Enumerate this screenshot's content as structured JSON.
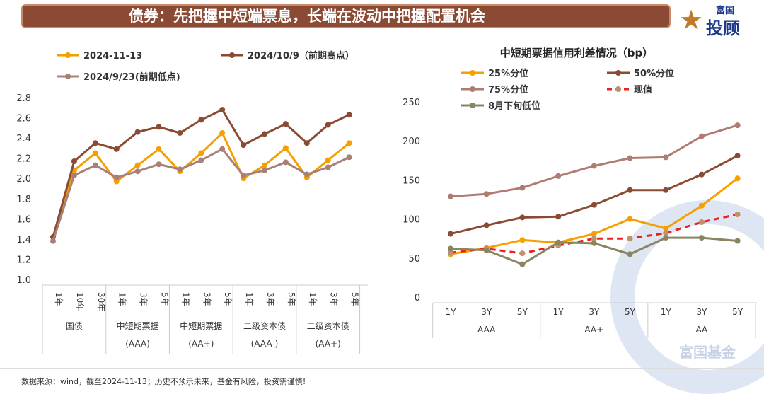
{
  "header": {
    "title": "债券：先把握中短端票息，长端在波动中把握配置机会"
  },
  "logo": {
    "star": "星",
    "line1": "富国",
    "line2": "投顾"
  },
  "watermark": "富国基金",
  "footer": "数据来源：wind，截至2024-11-13；历史不预示未来，基金有风险，投资需谨慎!",
  "chart_data": [
    {
      "type": "line",
      "title": "",
      "ylim": [
        1.0,
        2.8
      ],
      "yticks": [
        "1.0",
        "1.2",
        "1.4",
        "1.6",
        "1.8",
        "2.0",
        "2.2",
        "2.4",
        "2.6",
        "2.8"
      ],
      "grid": false,
      "legend": "top",
      "categories": [
        "1年",
        "10年",
        "30年",
        "1年",
        "3年",
        "5年",
        "1年",
        "3年",
        "5年",
        "1年",
        "3年",
        "5年",
        "1年",
        "3年",
        "5年"
      ],
      "groups": [
        {
          "label": "国债",
          "sub": "",
          "span": 3
        },
        {
          "label": "中短期票据",
          "sub": "(AAA)",
          "span": 3
        },
        {
          "label": "中短期票据",
          "sub": "(AA+)",
          "span": 3
        },
        {
          "label": "二级资本债",
          "sub": "(AAA-)",
          "span": 3
        },
        {
          "label": "二级资本债",
          "sub": "(AA+)",
          "span": 3
        }
      ],
      "series": [
        {
          "name": "2024-11-13",
          "color": "#f5a000",
          "dash": false,
          "values": [
            1.42,
            2.08,
            2.25,
            1.97,
            2.13,
            2.29,
            2.07,
            2.25,
            2.45,
            2.0,
            2.13,
            2.3,
            2.01,
            2.18,
            2.35
          ]
        },
        {
          "name": "2024/10/9（前期高点）",
          "color": "#8b4a32",
          "dash": false,
          "values": [
            1.42,
            2.17,
            2.35,
            2.29,
            2.46,
            2.51,
            2.45,
            2.58,
            2.68,
            2.33,
            2.44,
            2.54,
            2.35,
            2.53,
            2.63
          ]
        },
        {
          "name": "2024/9/23(前期低点)",
          "color": "#a88078",
          "dash": false,
          "values": [
            1.38,
            2.03,
            2.13,
            2.01,
            2.07,
            2.14,
            2.09,
            2.18,
            2.29,
            2.03,
            2.08,
            2.16,
            2.04,
            2.11,
            2.21
          ]
        }
      ]
    },
    {
      "type": "line",
      "title": "中短期票据信用利差情况（bp）",
      "ylim": [
        0,
        250
      ],
      "yticks": [
        "0",
        "50",
        "100",
        "150",
        "200",
        "250"
      ],
      "grid": false,
      "legend": "top",
      "categories": [
        "1Y",
        "3Y",
        "5Y",
        "1Y",
        "3Y",
        "5Y",
        "1Y",
        "3Y",
        "5Y"
      ],
      "groups": [
        {
          "label": "AAA",
          "sub": "",
          "span": 3
        },
        {
          "label": "AA+",
          "sub": "",
          "span": 3
        },
        {
          "label": "AA",
          "sub": "",
          "span": 3
        }
      ],
      "series": [
        {
          "name": "25%分位",
          "color": "#f5a000",
          "dash": false,
          "values": [
            55,
            63,
            73,
            70,
            81,
            100,
            88,
            117,
            152
          ]
        },
        {
          "name": "50%分位",
          "color": "#8b4a32",
          "dash": false,
          "values": [
            81,
            92,
            102,
            103,
            118,
            137,
            137,
            157,
            181
          ]
        },
        {
          "name": "75%分位",
          "color": "#b07c72",
          "dash": false,
          "values": [
            129,
            132,
            140,
            155,
            168,
            178,
            179,
            206,
            220
          ]
        },
        {
          "name": "现值",
          "color": "#e8221c",
          "marker": "#c0906a",
          "dash": true,
          "values": [
            57,
            62,
            56,
            66,
            75,
            75,
            82,
            96,
            106
          ]
        },
        {
          "name": "8月下旬低位",
          "color": "#8a8460",
          "dash": false,
          "values": [
            62,
            60,
            42,
            70,
            69,
            55,
            76,
            76,
            72
          ]
        }
      ]
    }
  ]
}
